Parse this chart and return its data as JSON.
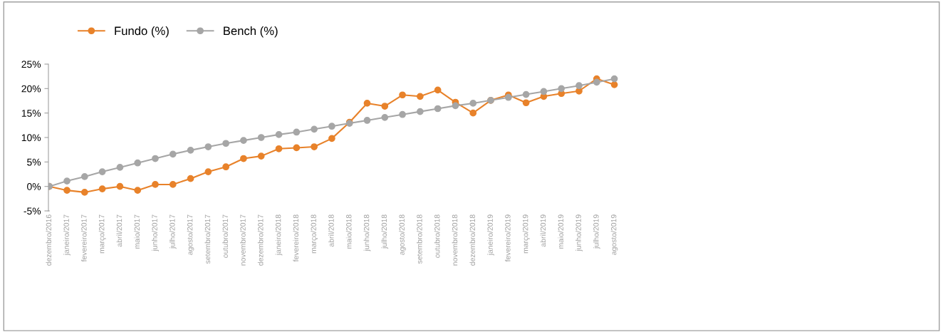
{
  "chart_data": {
    "type": "line",
    "categories": [
      "dezembro/2016",
      "janeiro/2017",
      "fevereiro/2017",
      "março/2017",
      "abril/2017",
      "maio/2017",
      "junho/2017",
      "julho/2017",
      "agosto/2017",
      "setembro/2017",
      "outubro/2017",
      "novembro/2017",
      "dezembro/2017",
      "janeiro/2018",
      "fevereiro/2018",
      "março/2018",
      "abril/2018",
      "maio/2018",
      "junho/2018",
      "julho/2018",
      "agosto/2018",
      "setembro/2018",
      "outubro/2018",
      "novembro/2018",
      "dezembro/2018",
      "janeiro/2019",
      "fevereiro/2019",
      "março/2019",
      "abril/2019",
      "maio/2019",
      "junho/2019",
      "julho/2019",
      "agosto/2019"
    ],
    "series": [
      {
        "name": "Fundo (%)",
        "color": "#e8822a",
        "values": [
          0,
          -0.8,
          -1.2,
          -0.5,
          0,
          -0.8,
          0.4,
          0.4,
          1.6,
          3.0,
          4.0,
          5.7,
          6.2,
          7.7,
          7.9,
          8.1,
          9.8,
          13.1,
          17.0,
          16.4,
          18.7,
          18.4,
          19.7,
          17.2,
          15.0,
          17.6,
          18.7,
          17.1,
          18.4,
          19.0,
          19.5,
          22.0,
          20.8
        ]
      },
      {
        "name": "Bench (%)",
        "color": "#a6a6a6",
        "values": [
          0,
          1.1,
          2.0,
          3.0,
          3.9,
          4.8,
          5.7,
          6.6,
          7.4,
          8.1,
          8.8,
          9.4,
          10.0,
          10.6,
          11.1,
          11.7,
          12.3,
          12.9,
          13.5,
          14.1,
          14.7,
          15.3,
          15.9,
          16.5,
          17.0,
          17.6,
          18.2,
          18.8,
          19.4,
          20.0,
          20.6,
          21.3,
          22.0
        ]
      }
    ],
    "ylim": [
      -5,
      25
    ],
    "yticks": [
      {
        "value": -5,
        "label": "-5%"
      },
      {
        "value": 0,
        "label": "0%"
      },
      {
        "value": 5,
        "label": "5%"
      },
      {
        "value": 10,
        "label": "10%"
      },
      {
        "value": 15,
        "label": "15%"
      },
      {
        "value": 20,
        "label": "20%"
      },
      {
        "value": 25,
        "label": "25%"
      }
    ],
    "legend": "top left",
    "marker": "circle",
    "line_style": "solid",
    "grid": false
  }
}
